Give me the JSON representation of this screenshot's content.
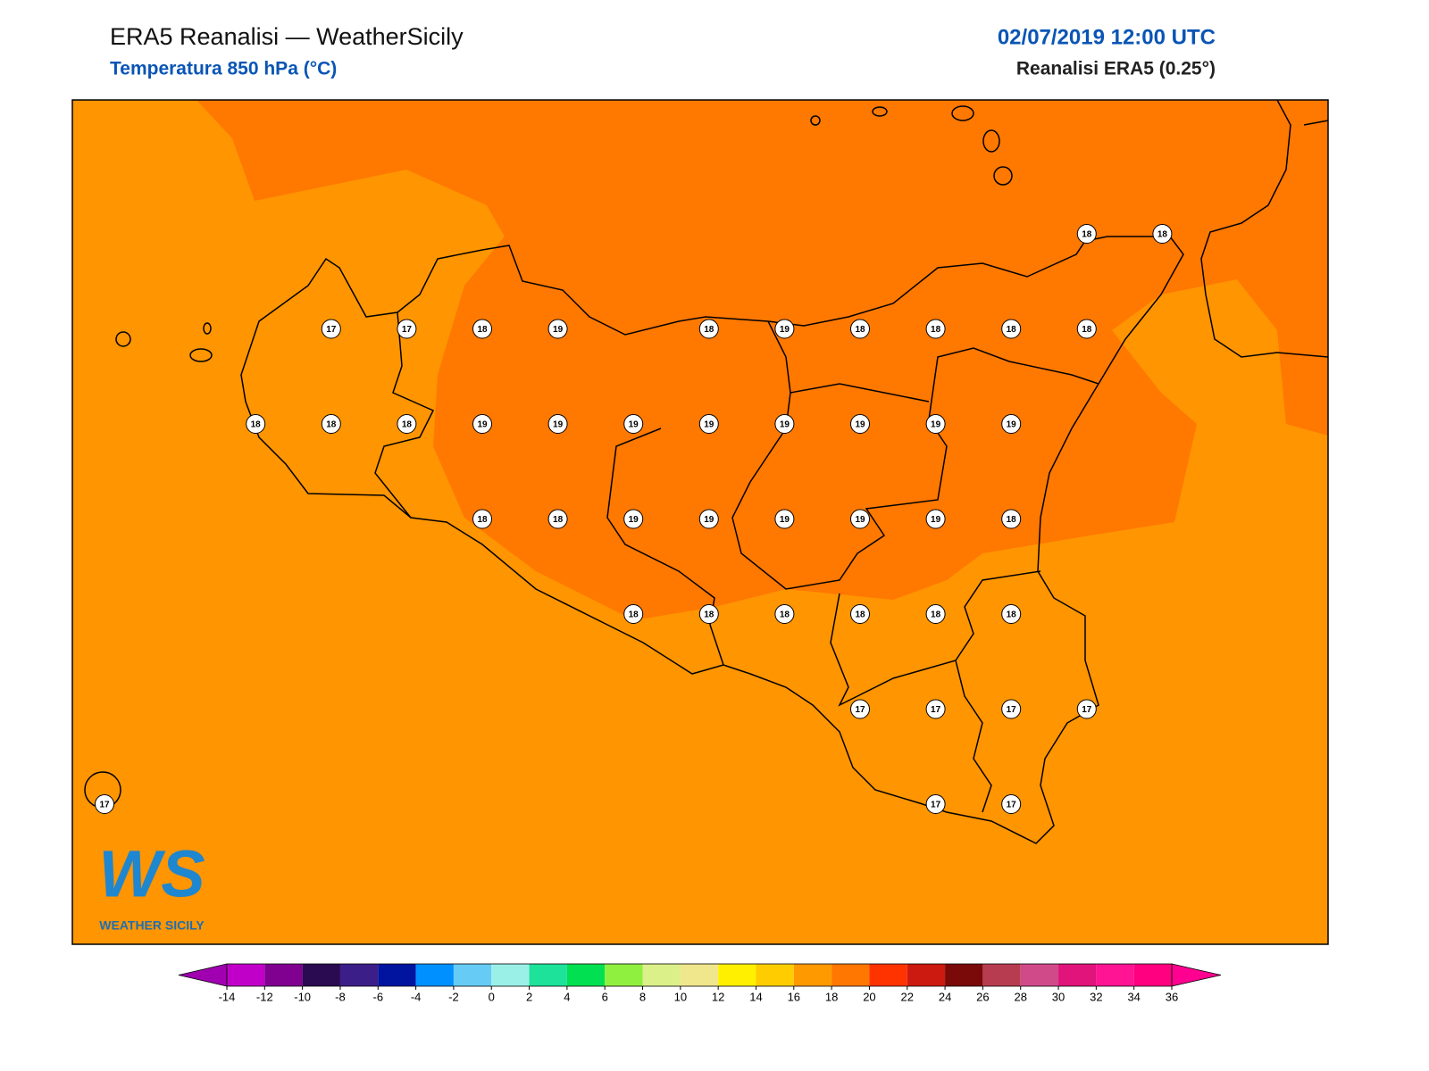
{
  "header": {
    "title": "ERA5 Reanalisi — WeatherSicily",
    "subtitle": "Temperatura 850 hPa (°C)",
    "datetime": "02/07/2019 12:00 UTC",
    "source": "Reanalisi ERA5 (0.25°)"
  },
  "map": {
    "grid": [
      [
        null,
        null,
        null,
        null,
        null,
        null,
        null,
        null,
        null,
        null,
        null,
        null,
        null,
        18,
        18
      ],
      [
        null,
        null,
        null,
        17,
        17,
        18,
        19,
        null,
        18,
        19,
        18,
        18,
        18,
        18,
        null
      ],
      [
        null,
        null,
        18,
        18,
        18,
        19,
        19,
        19,
        19,
        19,
        19,
        19,
        19,
        null,
        null
      ],
      [
        null,
        null,
        null,
        null,
        null,
        18,
        18,
        19,
        19,
        19,
        19,
        19,
        18,
        null,
        null
      ],
      [
        null,
        null,
        null,
        null,
        null,
        null,
        null,
        18,
        18,
        18,
        18,
        18,
        18,
        null,
        null
      ],
      [
        null,
        null,
        null,
        null,
        null,
        null,
        null,
        null,
        null,
        null,
        17,
        17,
        17,
        17,
        null
      ],
      [
        17,
        null,
        null,
        null,
        null,
        null,
        null,
        null,
        null,
        null,
        null,
        17,
        17,
        null,
        null
      ]
    ]
  },
  "logo": {
    "mark": "WS",
    "name": "WEATHER SICILY"
  },
  "colorbar": {
    "ticks": [
      -14,
      -12,
      -10,
      -8,
      -6,
      -4,
      -2,
      0,
      2,
      4,
      6,
      8,
      10,
      12,
      14,
      16,
      18,
      20,
      22,
      24,
      26,
      28,
      30,
      32,
      34,
      36
    ],
    "colors": [
      "#c000c8",
      "#800090",
      "#2a0a50",
      "#3c1e88",
      "#0014a0",
      "#0090ff",
      "#66ccf5",
      "#9af0e6",
      "#1de29a",
      "#00e050",
      "#90f040",
      "#dcf08a",
      "#f0e68c",
      "#fff000",
      "#ffcc00",
      "#ff9900",
      "#ff7700",
      "#ff3300",
      "#cc1a10",
      "#7a0a0a",
      "#b83c50",
      "#d04a8a",
      "#e0147a",
      "#ff1493",
      "#ff0080"
    ],
    "under": "#a000b0",
    "over": "#ff0090"
  }
}
